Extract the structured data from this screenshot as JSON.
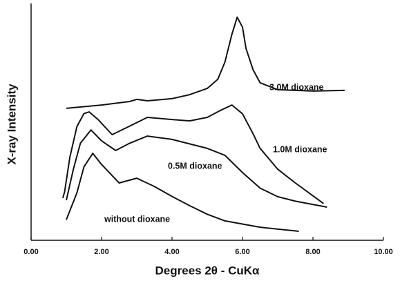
{
  "chart_data": {
    "type": "line",
    "xlabel": "Degrees 2θ - CuKα",
    "ylabel": "X-ray Intensity",
    "xlim": [
      0,
      10
    ],
    "xticks": [
      {
        "value": 0,
        "label": "0.00"
      },
      {
        "value": 2,
        "label": "2.00"
      },
      {
        "value": 4,
        "label": "4.00"
      },
      {
        "value": 6,
        "label": "6.00"
      },
      {
        "value": 8,
        "label": "8.00"
      },
      {
        "value": 10,
        "label": "10.00"
      }
    ],
    "ylim": [
      0,
      100
    ],
    "series": [
      {
        "name": "3.0M dioxane",
        "color": "#111111",
        "x": [
          1.0,
          2.0,
          2.8,
          3.0,
          3.3,
          4.0,
          4.5,
          5.0,
          5.3,
          5.5,
          5.7,
          5.85,
          6.0,
          6.1,
          6.3,
          6.5,
          7.0,
          8.0,
          8.9
        ],
        "values": [
          55.7,
          57.1,
          58.6,
          59.5,
          58.9,
          59.8,
          61.5,
          64.1,
          68,
          75.2,
          87,
          94.2,
          90,
          81,
          72,
          66.5,
          63.6,
          63.0,
          63.3
        ]
      },
      {
        "name": "1.0M dioxane",
        "color": "#111111",
        "x": [
          0.9,
          0.95,
          1.1,
          1.3,
          1.5,
          1.65,
          1.9,
          2.3,
          2.7,
          3.3,
          4.0,
          4.5,
          5.0,
          5.4,
          5.7,
          6.0,
          6.3,
          6.5,
          7.0,
          7.5,
          8.3
        ],
        "values": [
          17.8,
          20.4,
          35,
          48,
          53.5,
          54.2,
          51,
          44.6,
          47.5,
          51.9,
          51,
          50.4,
          51.9,
          55,
          57.1,
          53.4,
          45,
          38.8,
          30.0,
          24.2,
          15.5
        ]
      },
      {
        "name": "0.5M dioxane",
        "color": "#111111",
        "x": [
          1.0,
          1.2,
          1.4,
          1.7,
          2.0,
          2.4,
          2.8,
          3.3,
          4.0,
          5.0,
          5.5,
          6.0,
          6.5,
          7.0,
          7.5,
          8.4
        ],
        "values": [
          16.9,
          30,
          41,
          46.6,
          42,
          37.9,
          41,
          44.0,
          42.6,
          38.8,
          35.9,
          28.6,
          22,
          18.4,
          16.5,
          14.0
        ]
      },
      {
        "name": "without dioxane",
        "color": "#111111",
        "x": [
          1.0,
          1.3,
          1.5,
          1.75,
          2.0,
          2.5,
          3.0,
          3.5,
          4.0,
          4.5,
          5.0,
          5.5,
          6.5,
          7.6
        ],
        "values": [
          8.7,
          20,
          31,
          36.7,
          32,
          24.2,
          26.2,
          22.7,
          18.5,
          14.6,
          11,
          8.2,
          5.5,
          3.8
        ]
      }
    ]
  }
}
